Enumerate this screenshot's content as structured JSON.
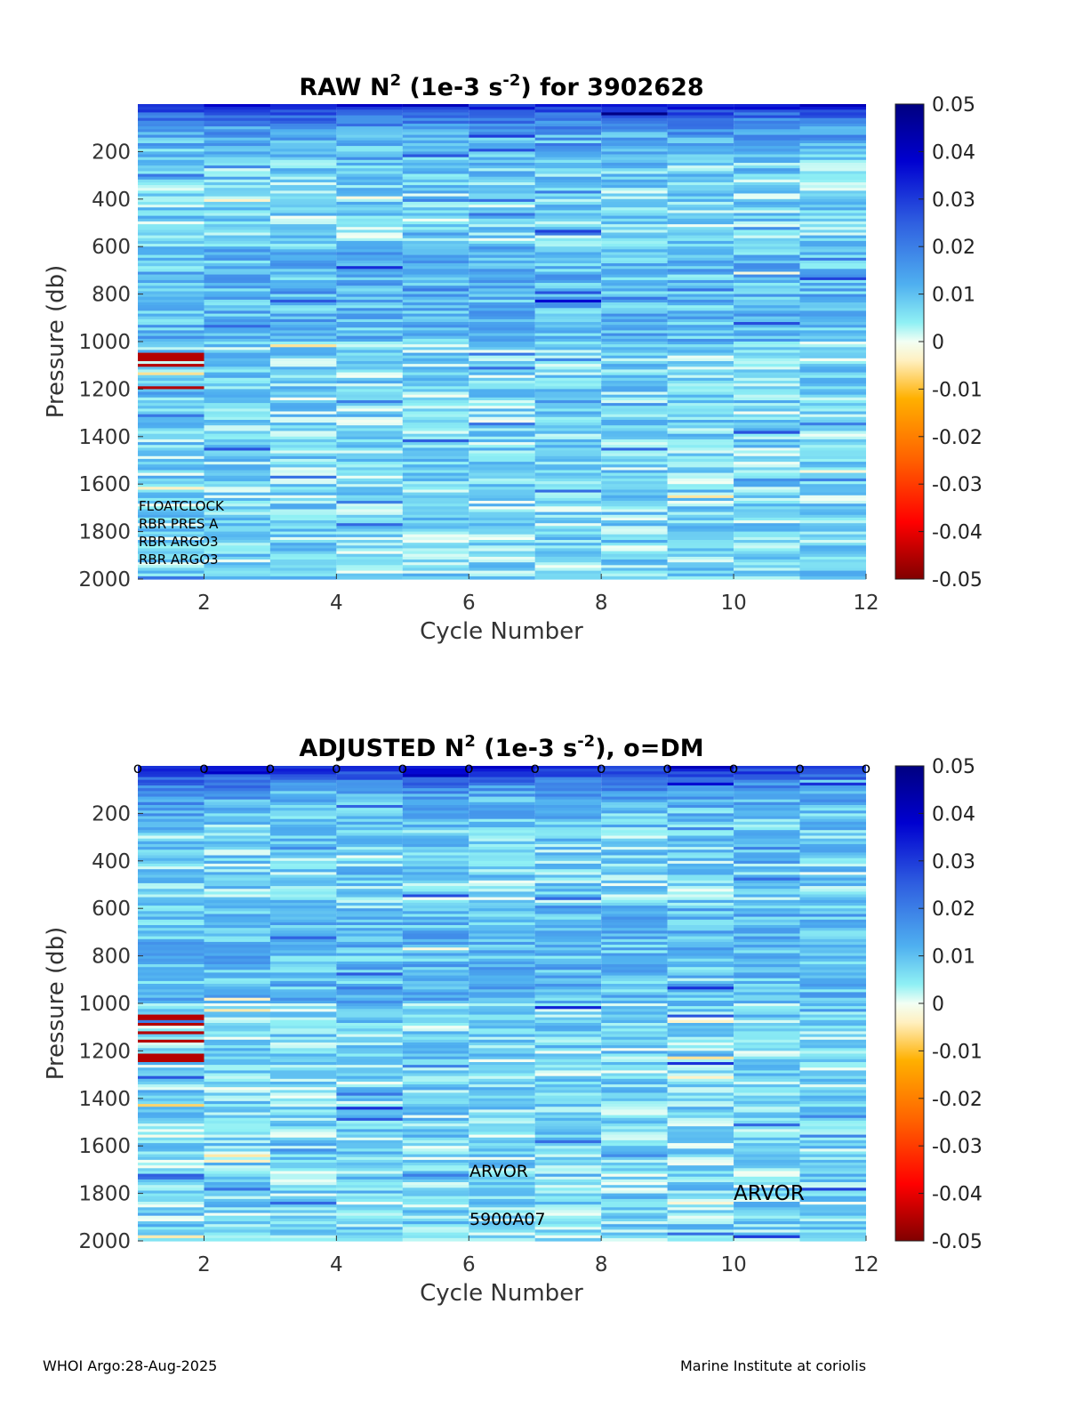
{
  "chart_data": [
    {
      "type": "heatmap",
      "title_prefix": "RAW N",
      "title_exp": "2",
      "title_mid": " (1e-3 s",
      "title_unit_exp": "-2",
      "title_suffix": ") for 3902628",
      "xlabel": "Cycle Number",
      "ylabel": "Pressure (db)",
      "xlim": [
        1,
        12
      ],
      "ylim": [
        0,
        2000
      ],
      "xticks": [
        "2",
        "4",
        "6",
        "8",
        "10",
        "12"
      ],
      "yticks": [
        "200",
        "400",
        "600",
        "800",
        "1000",
        "1200",
        "1400",
        "1600",
        "1800",
        "2000"
      ],
      "cycles": [
        1,
        2,
        3,
        4,
        5,
        6,
        7,
        8,
        9,
        10,
        11
      ],
      "colorbar": {
        "min": -0.05,
        "max": 0.05,
        "ticks": [
          "0.05",
          "0.04",
          "0.03",
          "0.02",
          "0.01",
          "0",
          "-0.01",
          "-0.02",
          "-0.03",
          "-0.04",
          "-0.05"
        ]
      },
      "annotations": [
        "FLOATCLOCK",
        "RBR PRES A",
        "RBR ARGO3",
        "RBR ARGO3"
      ],
      "dm_markers": []
    },
    {
      "type": "heatmap",
      "title_prefix": "ADJUSTED N",
      "title_exp": "2",
      "title_mid": " (1e-3 s",
      "title_unit_exp": "-2",
      "title_suffix": "), o=DM",
      "xlabel": "Cycle Number",
      "ylabel": "Pressure (db)",
      "xlim": [
        1,
        12
      ],
      "ylim": [
        0,
        2000
      ],
      "xticks": [
        "2",
        "4",
        "6",
        "8",
        "10",
        "12"
      ],
      "yticks": [
        "200",
        "400",
        "600",
        "800",
        "1000",
        "1200",
        "1400",
        "1600",
        "1800",
        "2000"
      ],
      "cycles": [
        1,
        2,
        3,
        4,
        5,
        6,
        7,
        8,
        9,
        10,
        11
      ],
      "colorbar": {
        "min": -0.05,
        "max": 0.05,
        "ticks": [
          "0.05",
          "0.04",
          "0.03",
          "0.02",
          "0.01",
          "0",
          "-0.01",
          "-0.02",
          "-0.03",
          "-0.04",
          "-0.05"
        ]
      },
      "annotations": [
        "ARVOR",
        "5900A07",
        "ARVOR"
      ],
      "dm_markers": [
        1,
        2,
        3,
        4,
        5,
        6,
        7,
        8,
        9,
        10,
        11,
        12
      ],
      "dm_marker_label": "o"
    }
  ],
  "footer": {
    "left": "WHOI Argo:28-Aug-2025",
    "right": "Marine Institute at coriolis"
  }
}
